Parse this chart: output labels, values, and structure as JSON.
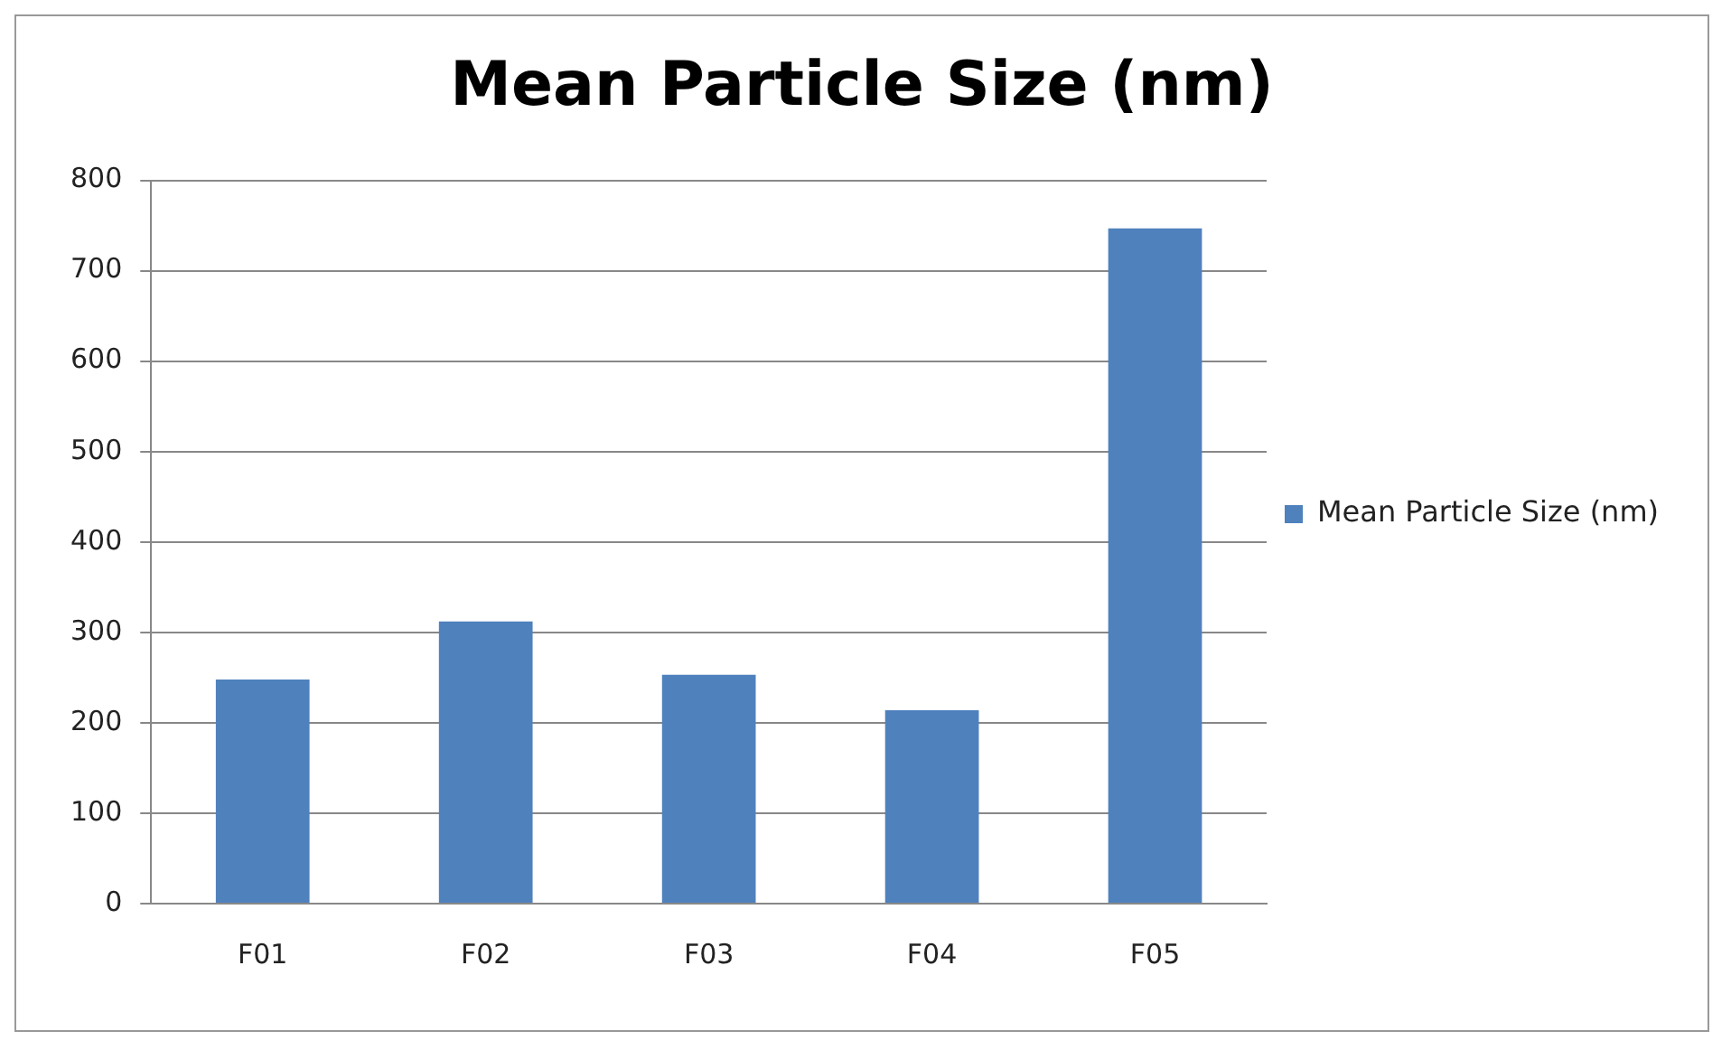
{
  "chart_data": {
    "type": "bar",
    "title": "Mean Particle Size (nm)",
    "categories": [
      "F01",
      "F02",
      "F03",
      "F04",
      "F05"
    ],
    "series": [
      {
        "name": "Mean Particle Size (nm)",
        "color": "#4f81bd",
        "values": [
          248,
          312,
          253,
          214,
          747
        ]
      }
    ],
    "ylim": [
      0,
      800
    ],
    "yticks": [
      0,
      100,
      200,
      300,
      400,
      500,
      600,
      700,
      800
    ],
    "grid": "y",
    "legend": "right"
  }
}
